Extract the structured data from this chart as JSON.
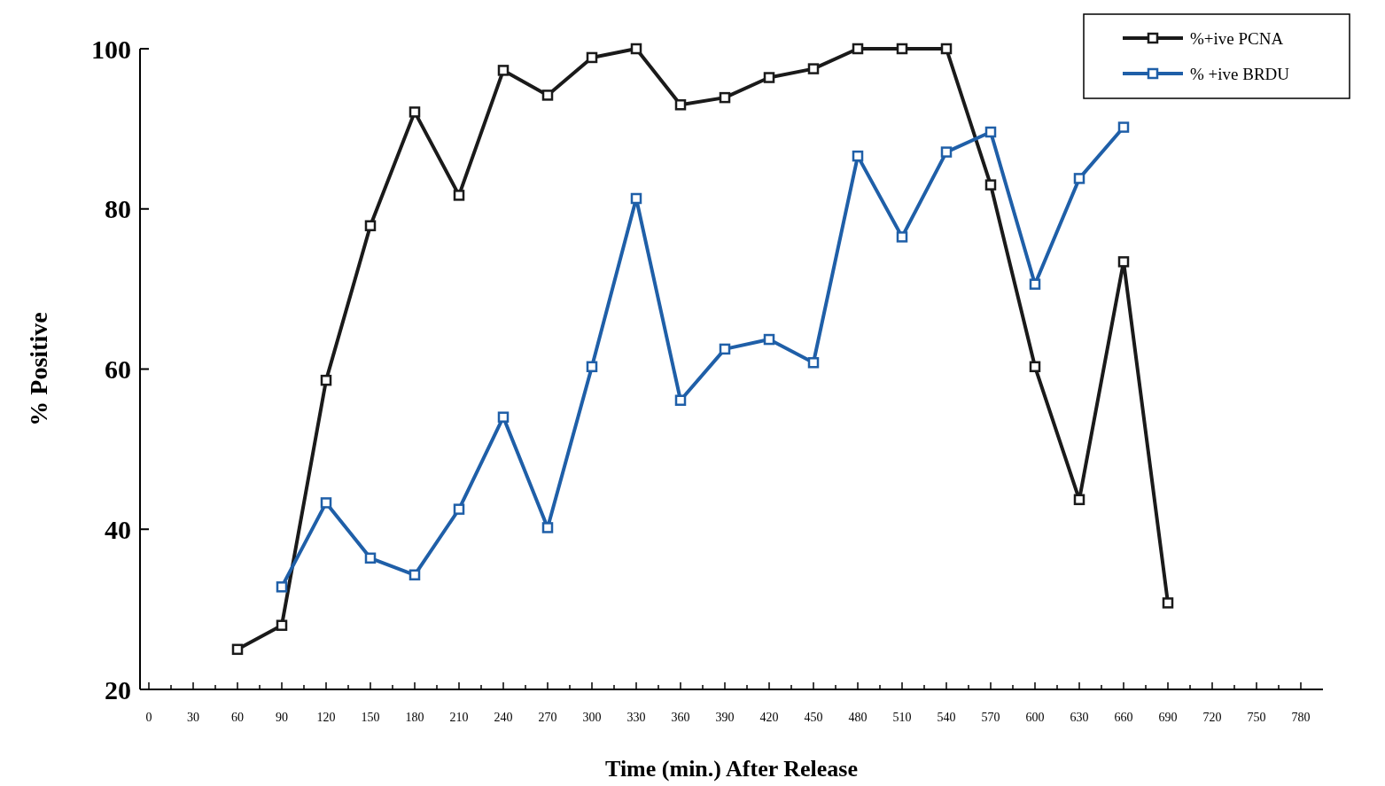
{
  "chart_data": {
    "type": "line",
    "xlabel": "Time  (min.)  After  Release",
    "ylabel": "%  Positive",
    "xlim": [
      -6,
      795
    ],
    "ylim": [
      20,
      100
    ],
    "yticks": [
      20,
      40,
      60,
      80,
      100
    ],
    "xticks": [
      0,
      {
        "value": 15,
        "label": null
      },
      30,
      {
        "value": 45,
        "label": null
      },
      60,
      {
        "value": 75,
        "label": null
      },
      90,
      {
        "value": 105,
        "label": null
      },
      120,
      {
        "value": 135,
        "label": null
      },
      150,
      {
        "value": 165,
        "label": null
      },
      180,
      {
        "value": 195,
        "label": null
      },
      210,
      {
        "value": 225,
        "label": null
      },
      240,
      {
        "value": 255,
        "label": null
      },
      270,
      {
        "value": 285,
        "label": null
      },
      300,
      {
        "value": 315,
        "label": null
      },
      330,
      {
        "value": 345,
        "label": null
      },
      360,
      {
        "value": 375,
        "label": null
      },
      390,
      {
        "value": 405,
        "label": null
      },
      420,
      {
        "value": 435,
        "label": null
      },
      450,
      {
        "value": 465,
        "label": null
      },
      480,
      {
        "value": 495,
        "label": null
      },
      510,
      {
        "value": 525,
        "label": null
      },
      540,
      {
        "value": 555,
        "label": null
      },
      570,
      {
        "value": 585,
        "label": null
      },
      600,
      {
        "value": 615,
        "label": null
      },
      630,
      {
        "value": 645,
        "label": null
      },
      660,
      {
        "value": 675,
        "label": null
      },
      690,
      {
        "value": 705,
        "label": null
      },
      720,
      {
        "value": 735,
        "label": null
      },
      750,
      {
        "value": 765,
        "label": null
      },
      780
    ],
    "grid": false,
    "legend": "top right",
    "marker": "square",
    "line_style": "solid",
    "series": [
      {
        "name": "%+ive PCNA",
        "color": "#1a1a1a",
        "x": [
          60,
          90,
          120,
          150,
          180,
          210,
          240,
          270,
          300,
          330,
          360,
          390,
          420,
          450,
          480,
          510,
          540,
          570,
          600,
          630,
          660,
          690
        ],
        "values": [
          25,
          28,
          58.6,
          77.9,
          92.1,
          81.7,
          97.3,
          94.2,
          98.9,
          100,
          93,
          93.9,
          96.4,
          97.5,
          100,
          100,
          100,
          83,
          60.3,
          43.7,
          73.4,
          30.8
        ]
      },
      {
        "name": "% +ive BRDU",
        "color": "#1f5fa8",
        "x": [
          90,
          120,
          150,
          180,
          210,
          240,
          270,
          300,
          330,
          360,
          390,
          420,
          450,
          480,
          510,
          540,
          570,
          600,
          630,
          660
        ],
        "values": [
          32.8,
          43.3,
          36.4,
          34.3,
          42.5,
          54,
          40.2,
          60.3,
          81.3,
          56.1,
          62.5,
          63.7,
          60.8,
          86.6,
          76.5,
          87.1,
          89.6,
          70.6,
          83.8,
          90.2
        ]
      }
    ]
  }
}
